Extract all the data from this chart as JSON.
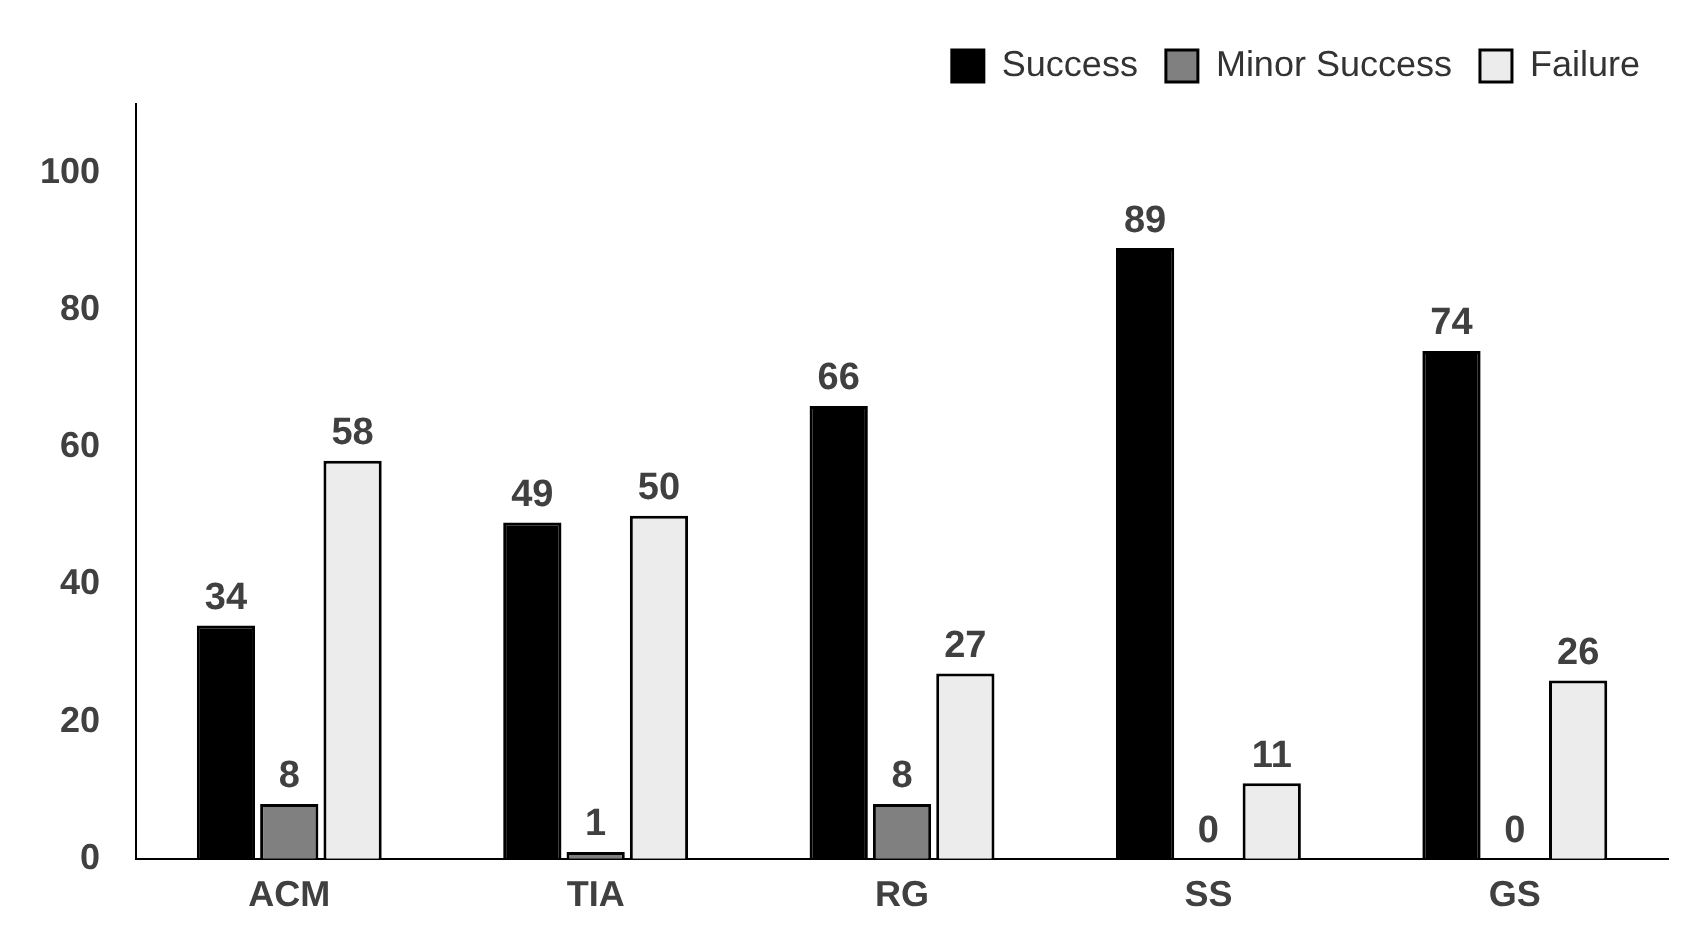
{
  "chart_data": {
    "type": "bar",
    "categories": [
      "ACM",
      "TIA",
      "RG",
      "SS",
      "GS"
    ],
    "series": [
      {
        "name": "Success",
        "color": "#000000",
        "values": [
          34,
          49,
          66,
          89,
          74
        ]
      },
      {
        "name": "Minor Success",
        "color": "#808080",
        "values": [
          8,
          1,
          8,
          0,
          0
        ]
      },
      {
        "name": "Failure",
        "color": "#ececec",
        "values": [
          58,
          50,
          27,
          11,
          26
        ]
      }
    ],
    "ylim": [
      0,
      110
    ],
    "yticks": [
      0,
      20,
      40,
      60,
      80,
      100
    ],
    "grid": false,
    "legend": "top right",
    "data_labels": true
  }
}
